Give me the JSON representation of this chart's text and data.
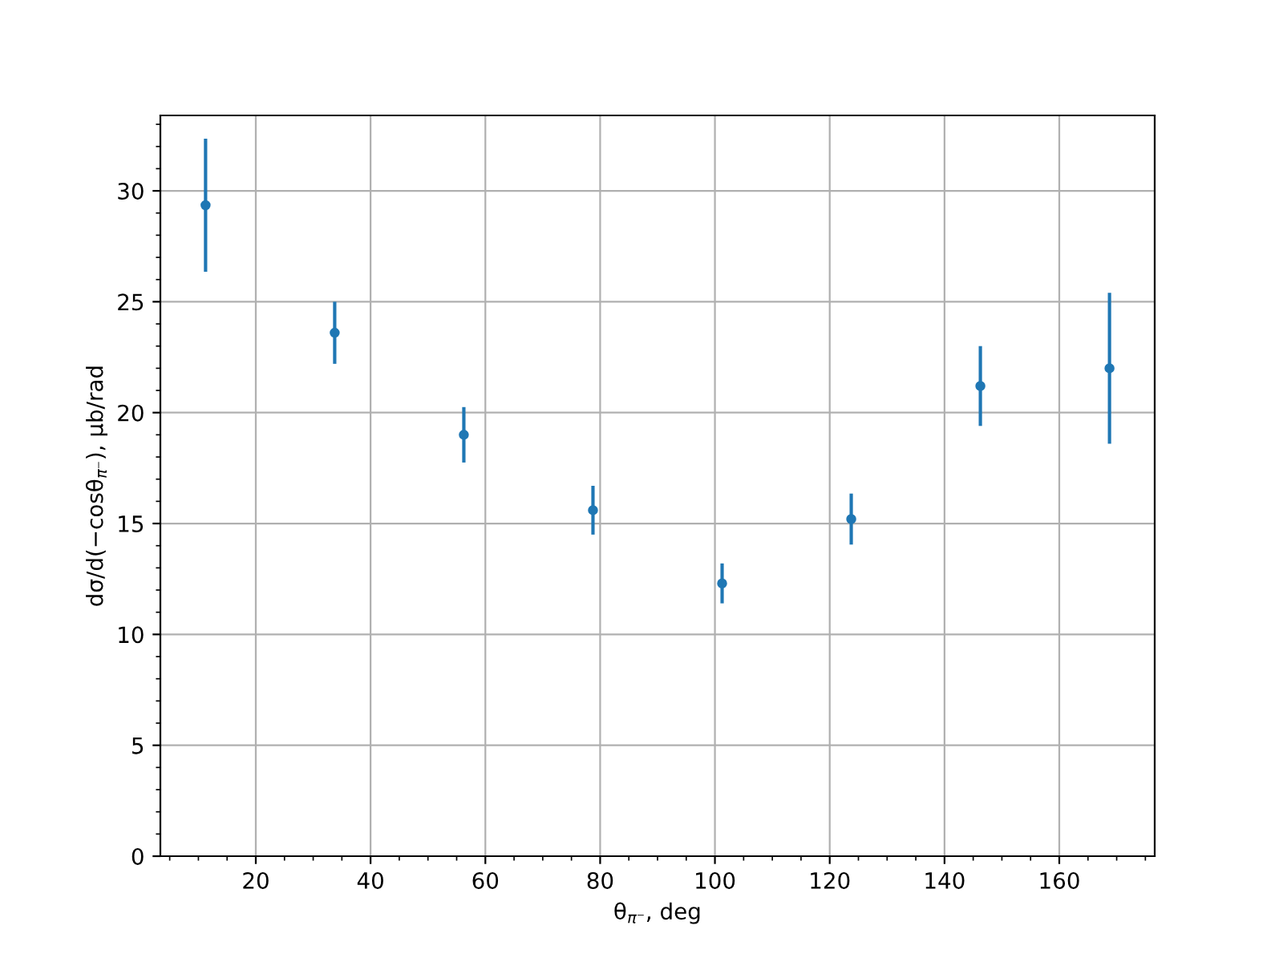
{
  "chart_data": {
    "type": "scatter",
    "xlabel": "θ$_{π⁻}$, deg",
    "ylabel": "dσ/d(−cosθ$_{π⁻}$), μb/rad",
    "x": [
      11.25,
      33.75,
      56.25,
      78.75,
      101.25,
      123.75,
      146.25,
      168.75
    ],
    "series": [
      {
        "color": "#1f77b4",
        "values": [
          29.35,
          23.6,
          19.0,
          15.6,
          12.3,
          15.2,
          21.2,
          22.0
        ],
        "errors": [
          3.0,
          1.4,
          1.25,
          1.1,
          0.9,
          1.15,
          1.8,
          3.4
        ]
      }
    ],
    "marker": "circle",
    "xlim": [
      3.375,
      176.625
    ],
    "xticks": [
      20,
      40,
      60,
      80,
      100,
      120,
      140,
      160
    ],
    "ylim": [
      0,
      33.4
    ],
    "yticks": [
      0,
      5,
      10,
      15,
      20,
      25,
      30
    ],
    "grid": true
  }
}
